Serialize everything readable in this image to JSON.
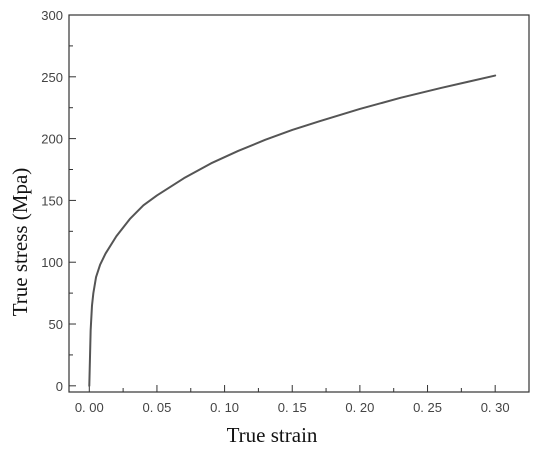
{
  "chart_data": {
    "type": "line",
    "xlabel": "True strain",
    "ylabel": "True stress (Mpa)",
    "xlim": [
      -0.015,
      0.325
    ],
    "ylim": [
      -5,
      300
    ],
    "xticks": [
      0.0,
      0.05,
      0.1,
      0.15,
      0.2,
      0.25,
      0.3
    ],
    "xtick_labels": [
      "0. 00",
      "0. 05",
      "0. 10",
      "0. 15",
      "0. 20",
      "0. 25",
      "0. 30"
    ],
    "yticks": [
      0,
      50,
      100,
      150,
      200,
      250,
      300
    ],
    "ytick_labels": [
      "0",
      "50",
      "100",
      "150",
      "200",
      "250",
      "300"
    ],
    "grid": false,
    "series": [
      {
        "color": "#555555",
        "x": [
          0.0,
          0.001,
          0.002,
          0.003,
          0.005,
          0.008,
          0.012,
          0.02,
          0.03,
          0.04,
          0.05,
          0.07,
          0.09,
          0.11,
          0.13,
          0.15,
          0.17,
          0.2,
          0.23,
          0.26,
          0.28,
          0.3
        ],
        "y": [
          0,
          45,
          65,
          75,
          88,
          98,
          107,
          121,
          135,
          146,
          154,
          168,
          180,
          190,
          199,
          207,
          214,
          224,
          233,
          241,
          246,
          251
        ]
      }
    ]
  }
}
